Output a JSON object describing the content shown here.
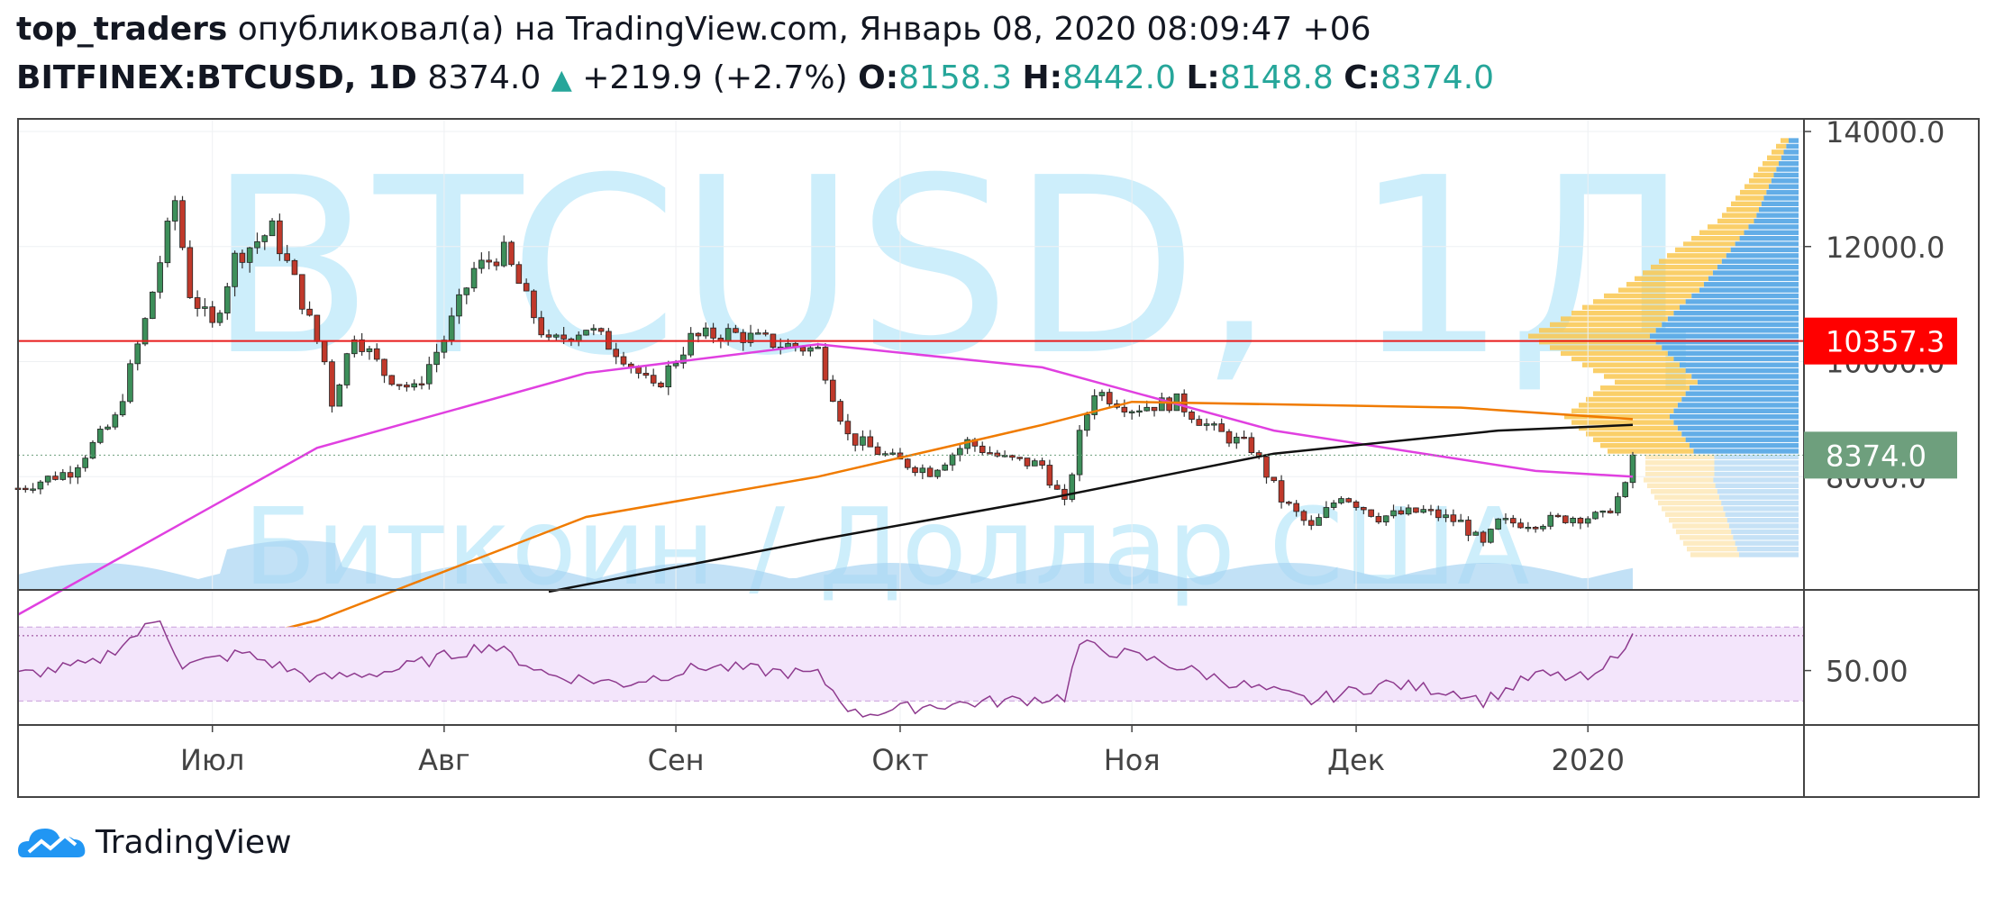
{
  "header": {
    "author": "top_traders",
    "published_text": "опубликовал(а) на TradingView.com, Январь 08, 2020 08:09:47 +06",
    "symbol": "BITFINEX:BTCUSD, 1D",
    "last_price": "8374.0",
    "change": "+219.9 (+2.7%)",
    "open_label": "O:",
    "open_value": "8158.3",
    "high_label": "H:",
    "high_value": "8442.0",
    "low_label": "L:",
    "low_value": "8148.8",
    "close_label": "C:",
    "close_value": "8374.0"
  },
  "watermark": {
    "line1": "BTCUSD, 1Д",
    "line2": "Биткоин / Доллар США"
  },
  "brand": {
    "name": "TradingView"
  },
  "colors": {
    "up": "#3d8f5a",
    "down": "#c0392b",
    "rsi": "#8e3a8e",
    "rsi_band": "#f3e5fb",
    "hline": "#e81c1c",
    "ma_magenta": "#e040e0",
    "ma_orange": "#f07b00",
    "ma_black": "#111111",
    "vp_up": "#f9c74f",
    "vp_down": "#5aa9e6",
    "watermark": "#cdeefb"
  },
  "chart_data": [
    {
      "type": "candlestick",
      "title": "",
      "y_axis": {
        "ticks": [
          "8000.0",
          "10000.0",
          "12000.0",
          "14000.0"
        ],
        "ylim": [
          6000,
          14000
        ],
        "side": "right"
      },
      "x_axis": {
        "ticks": [
          "Июл",
          "Авг",
          "Сен",
          "Окт",
          "Ноя",
          "Дек",
          "2020"
        ]
      },
      "price_labels": [
        {
          "value": 10357.3,
          "text": "10357.3",
          "color": "#ff0000"
        },
        {
          "value": 8374.0,
          "text": "8374.0",
          "color": "#6e9f7d"
        }
      ],
      "horizontal_line": 10357.3,
      "close_path": [
        [
          "2019-06-05",
          7800
        ],
        [
          "2019-06-12",
          8100
        ],
        [
          "2019-06-18",
          9000
        ],
        [
          "2019-06-22",
          10700
        ],
        [
          "2019-06-26",
          12800
        ],
        [
          "2019-06-28",
          11200
        ],
        [
          "2019-07-01",
          10600
        ],
        [
          "2019-07-04",
          11800
        ],
        [
          "2019-07-09",
          12300
        ],
        [
          "2019-07-12",
          11400
        ],
        [
          "2019-07-16",
          10000
        ],
        [
          "2019-07-17",
          9300
        ],
        [
          "2019-07-20",
          10500
        ],
        [
          "2019-07-24",
          9800
        ],
        [
          "2019-07-28",
          9500
        ],
        [
          "2019-08-01",
          10400
        ],
        [
          "2019-08-05",
          11600
        ],
        [
          "2019-08-09",
          11900
        ],
        [
          "2019-08-13",
          10800
        ],
        [
          "2019-08-15",
          10300
        ],
        [
          "2019-08-20",
          10600
        ],
        [
          "2019-08-25",
          10100
        ],
        [
          "2019-08-29",
          9500
        ],
        [
          "2019-09-03",
          10400
        ],
        [
          "2019-09-08",
          10500
        ],
        [
          "2019-09-15",
          10300
        ],
        [
          "2019-09-20",
          10200
        ],
        [
          "2019-09-24",
          8700
        ],
        [
          "2019-09-30",
          8300
        ],
        [
          "2019-10-05",
          8100
        ],
        [
          "2019-10-10",
          8600
        ],
        [
          "2019-10-15",
          8300
        ],
        [
          "2019-10-20",
          8200
        ],
        [
          "2019-10-23",
          7500
        ],
        [
          "2019-10-25",
          8700
        ],
        [
          "2019-10-27",
          9500
        ],
        [
          "2019-11-01",
          9200
        ],
        [
          "2019-11-07",
          9300
        ],
        [
          "2019-11-12",
          8800
        ],
        [
          "2019-11-17",
          8500
        ],
        [
          "2019-11-21",
          7600
        ],
        [
          "2019-11-25",
          7100
        ],
        [
          "2019-11-29",
          7700
        ],
        [
          "2019-12-04",
          7300
        ],
        [
          "2019-12-10",
          7400
        ],
        [
          "2019-12-15",
          7200
        ],
        [
          "2019-12-18",
          6800
        ],
        [
          "2019-12-20",
          7200
        ],
        [
          "2019-12-25",
          7200
        ],
        [
          "2019-12-30",
          7300
        ],
        [
          "2020-01-03",
          7300
        ],
        [
          "2020-01-06",
          7800
        ],
        [
          "2020-01-07",
          8374
        ]
      ],
      "moving_averages": [
        {
          "color": "#e040e0",
          "points": [
            [
              "2019-06-05",
              5600
            ],
            [
              "2019-07-15",
              8500
            ],
            [
              "2019-08-20",
              9800
            ],
            [
              "2019-09-20",
              10300
            ],
            [
              "2019-10-20",
              9900
            ],
            [
              "2019-11-20",
              8800
            ],
            [
              "2019-12-25",
              8100
            ],
            [
              "2020-01-07",
              8000
            ]
          ]
        },
        {
          "color": "#f07b00",
          "points": [
            [
              "2019-06-05",
              4200
            ],
            [
              "2019-07-15",
              5500
            ],
            [
              "2019-08-20",
              7300
            ],
            [
              "2019-09-20",
              8000
            ],
            [
              "2019-10-20",
              8900
            ],
            [
              "2019-11-01",
              9300
            ],
            [
              "2019-12-15",
              9200
            ],
            [
              "2020-01-07",
              9000
            ]
          ]
        },
        {
          "color": "#111111",
          "points": [
            [
              "2019-08-15",
              6000
            ],
            [
              "2019-09-20",
              6900
            ],
            [
              "2019-10-20",
              7600
            ],
            [
              "2019-11-20",
              8400
            ],
            [
              "2019-12-20",
              8800
            ],
            [
              "2020-01-07",
              8900
            ]
          ]
        }
      ]
    },
    {
      "type": "line",
      "title": "",
      "y_axis": {
        "ticks": [
          "50.00"
        ],
        "ylim": [
          25,
          85
        ],
        "band": [
          36,
          70
        ],
        "upper_dotted": 66
      },
      "rsi": [
        [
          "2019-06-05",
          48
        ],
        [
          "2019-06-15",
          53
        ],
        [
          "2019-06-24",
          74
        ],
        [
          "2019-06-27",
          52
        ],
        [
          "2019-07-05",
          58
        ],
        [
          "2019-07-15",
          46
        ],
        [
          "2019-07-25",
          50
        ],
        [
          "2019-08-07",
          62
        ],
        [
          "2019-08-15",
          48
        ],
        [
          "2019-08-25",
          44
        ],
        [
          "2019-09-05",
          52
        ],
        [
          "2019-09-20",
          48
        ],
        [
          "2019-09-25",
          30
        ],
        [
          "2019-10-05",
          34
        ],
        [
          "2019-10-15",
          36
        ],
        [
          "2019-10-23",
          38
        ],
        [
          "2019-10-25",
          62
        ],
        [
          "2019-11-05",
          54
        ],
        [
          "2019-11-15",
          44
        ],
        [
          "2019-11-25",
          36
        ],
        [
          "2019-12-05",
          44
        ],
        [
          "2019-12-15",
          40
        ],
        [
          "2019-12-18",
          36
        ],
        [
          "2019-12-25",
          48
        ],
        [
          "2020-01-02",
          46
        ],
        [
          "2020-01-07",
          67
        ]
      ]
    }
  ]
}
